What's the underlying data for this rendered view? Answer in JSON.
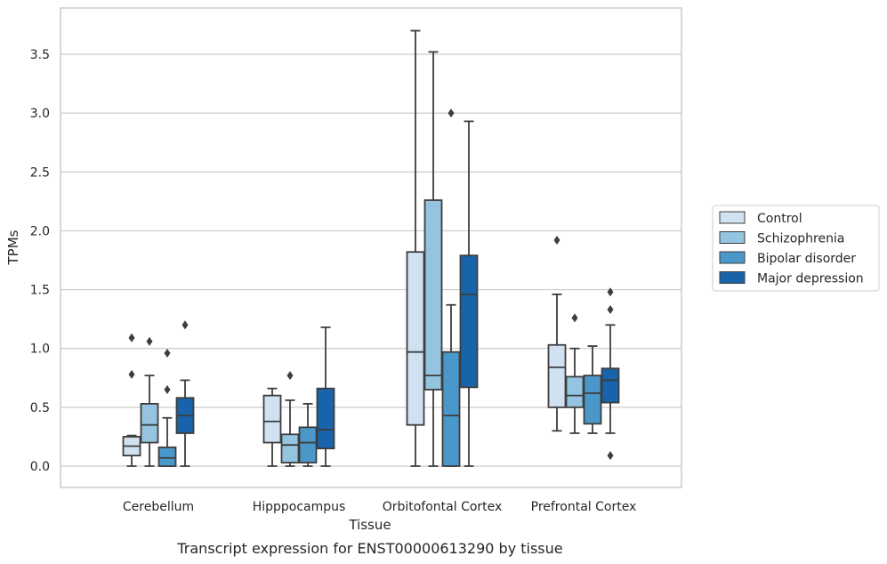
{
  "chart_data": {
    "type": "boxplot",
    "xlabel": "Tissue",
    "ylabel": "TPMs",
    "caption": "Transcript expression for ENST00000613290 by tissue",
    "ylim": [
      -0.18,
      3.9
    ],
    "yticks": [
      "0.0",
      "0.5",
      "1.0",
      "1.5",
      "2.0",
      "2.5",
      "3.0",
      "3.5"
    ],
    "ytick_values": [
      0,
      0.5,
      1.0,
      1.5,
      2.0,
      2.5,
      3.0,
      3.5
    ],
    "grid": "horizontal",
    "legend_position": "right",
    "categories": [
      "Cerebellum",
      "Hipppocampus",
      "Orbitofontal Cortex",
      "Prefrontal Cortex"
    ],
    "series": [
      {
        "name": "Control",
        "color": "#d0e1f2",
        "boxes": [
          {
            "whislo": 0.0,
            "q1": 0.09,
            "med": 0.17,
            "q3": 0.25,
            "whishi": 0.26,
            "fliers": [
              0.78,
              1.09
            ]
          },
          {
            "whislo": 0.0,
            "q1": 0.2,
            "med": 0.38,
            "q3": 0.6,
            "whishi": 0.66,
            "fliers": []
          },
          {
            "whislo": 0.0,
            "q1": 0.35,
            "med": 0.97,
            "q3": 1.82,
            "whishi": 3.7,
            "fliers": []
          },
          {
            "whislo": 0.3,
            "q1": 0.5,
            "med": 0.84,
            "q3": 1.03,
            "whishi": 1.46,
            "fliers": [
              1.92
            ]
          }
        ]
      },
      {
        "name": "Schizophrenia",
        "color": "#94c4df",
        "boxes": [
          {
            "whislo": 0.0,
            "q1": 0.2,
            "med": 0.35,
            "q3": 0.53,
            "whishi": 0.77,
            "fliers": [
              1.06
            ]
          },
          {
            "whislo": 0.0,
            "q1": 0.03,
            "med": 0.18,
            "q3": 0.27,
            "whishi": 0.56,
            "fliers": [
              0.77
            ]
          },
          {
            "whislo": 0.0,
            "q1": 0.65,
            "med": 0.77,
            "q3": 2.26,
            "whishi": 3.52,
            "fliers": []
          },
          {
            "whislo": 0.28,
            "q1": 0.5,
            "med": 0.6,
            "q3": 0.76,
            "whishi": 1.0,
            "fliers": [
              1.26
            ]
          }
        ]
      },
      {
        "name": "Bipolar disorder",
        "color": "#4a98c9",
        "boxes": [
          {
            "whislo": 0.0,
            "q1": 0.0,
            "med": 0.07,
            "q3": 0.16,
            "whishi": 0.41,
            "fliers": [
              0.65,
              0.96
            ]
          },
          {
            "whislo": 0.0,
            "q1": 0.03,
            "med": 0.2,
            "q3": 0.33,
            "whishi": 0.53,
            "fliers": []
          },
          {
            "whislo": 0.0,
            "q1": 0.0,
            "med": 0.43,
            "q3": 0.97,
            "whishi": 1.37,
            "fliers": [
              3.0
            ]
          },
          {
            "whislo": 0.28,
            "q1": 0.36,
            "med": 0.62,
            "q3": 0.77,
            "whishi": 1.02,
            "fliers": []
          }
        ]
      },
      {
        "name": "Major depression",
        "color": "#1764ab",
        "boxes": [
          {
            "whislo": 0.0,
            "q1": 0.28,
            "med": 0.43,
            "q3": 0.58,
            "whishi": 0.73,
            "fliers": [
              1.2
            ]
          },
          {
            "whislo": 0.0,
            "q1": 0.15,
            "med": 0.31,
            "q3": 0.66,
            "whishi": 1.18,
            "fliers": []
          },
          {
            "whislo": 0.0,
            "q1": 0.67,
            "med": 1.46,
            "q3": 1.79,
            "whishi": 2.93,
            "fliers": []
          },
          {
            "whislo": 0.28,
            "q1": 0.54,
            "med": 0.73,
            "q3": 0.83,
            "whishi": 1.2,
            "fliers": [
              0.09,
              1.33,
              1.48
            ]
          }
        ]
      }
    ]
  }
}
